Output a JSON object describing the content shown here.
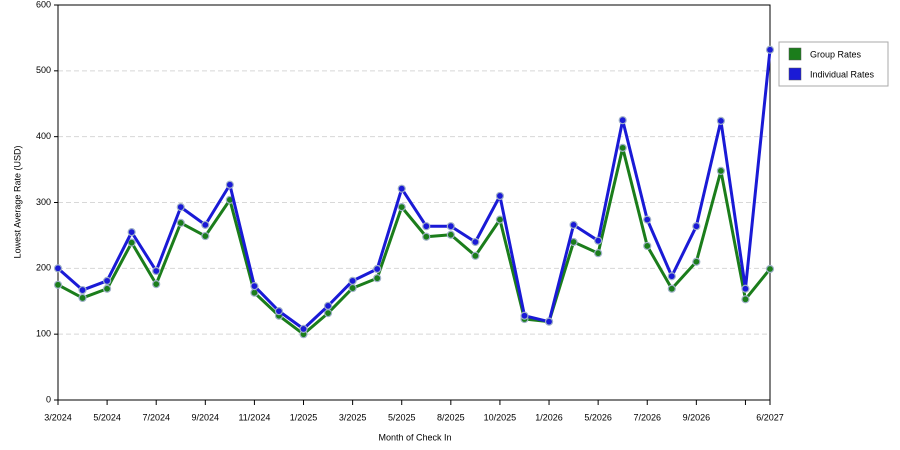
{
  "chart_data": {
    "type": "line",
    "x_label": "Month of Check In",
    "y_label": "Lowest Average Rate (USD)",
    "categories": [
      "3/2024",
      null,
      "5/2024",
      null,
      "7/2024",
      null,
      "9/2024",
      null,
      "11/2024",
      null,
      "1/2025",
      null,
      "3/2025",
      null,
      "5/2025",
      null,
      "8/2025",
      null,
      "10/2025",
      null,
      "1/2026",
      null,
      "5/2026",
      null,
      "7/2026",
      null,
      "9/2026",
      null,
      null,
      "6/2027"
    ],
    "series": [
      {
        "name": "Group Rates",
        "color": "#1b7d1b",
        "values": [
          175,
          155,
          169,
          239,
          176,
          269,
          249,
          304,
          163,
          128,
          100,
          132,
          170,
          185,
          293,
          248,
          251,
          219,
          274,
          123,
          119,
          240,
          223,
          383,
          234,
          169,
          210,
          348,
          153,
          199
        ]
      },
      {
        "name": "Individual Rates",
        "color": "#1a1ad6",
        "values": [
          200,
          167,
          181,
          255,
          196,
          293,
          266,
          327,
          173,
          135,
          108,
          143,
          181,
          199,
          321,
          264,
          264,
          240,
          310,
          128,
          119,
          266,
          242,
          425,
          274,
          188,
          264,
          424,
          169,
          532
        ]
      }
    ],
    "ylim": [
      0,
      600
    ],
    "yticks": [
      0,
      100,
      200,
      300,
      400,
      500,
      600
    ],
    "grid": true,
    "legend": "right"
  }
}
